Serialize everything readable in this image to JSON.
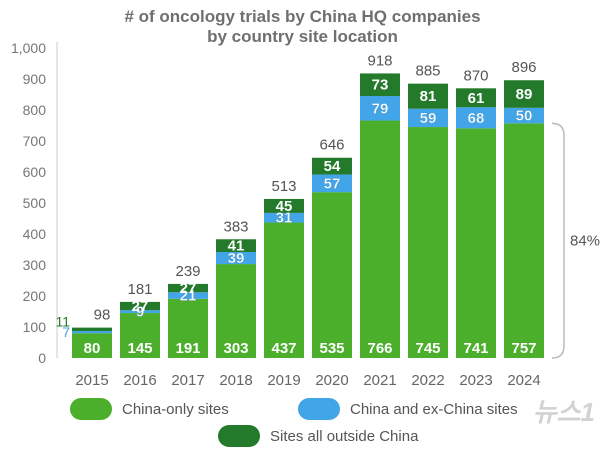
{
  "chart_data": {
    "type": "bar",
    "stacked": true,
    "title": "# of oncology trials by China HQ companies",
    "subtitle": "by country site location",
    "categories": [
      "2015",
      "2016",
      "2017",
      "2018",
      "2019",
      "2020",
      "2021",
      "2022",
      "2023",
      "2024"
    ],
    "series": [
      {
        "name": "China-only sites",
        "color": "#4caf2c",
        "values": [
          80,
          145,
          191,
          303,
          437,
          535,
          766,
          745,
          741,
          757
        ]
      },
      {
        "name": "China and ex-China sites",
        "color": "#41a5e8",
        "values": [
          7,
          9,
          21,
          39,
          31,
          57,
          79,
          59,
          68,
          50
        ]
      },
      {
        "name": "Sites all outside China",
        "color": "#237a2b",
        "values": [
          11,
          27,
          27,
          41,
          45,
          54,
          73,
          81,
          61,
          89
        ]
      }
    ],
    "totals": [
      98,
      181,
      239,
      383,
      513,
      646,
      918,
      885,
      870,
      896
    ],
    "ylim": [
      0,
      1000
    ],
    "yticks": [
      "0",
      "100",
      "200",
      "300",
      "400",
      "500",
      "600",
      "700",
      "800",
      "900",
      "1,000"
    ],
    "annotation": "84%",
    "legend_position": "bottom"
  },
  "watermark": "뉴스1"
}
